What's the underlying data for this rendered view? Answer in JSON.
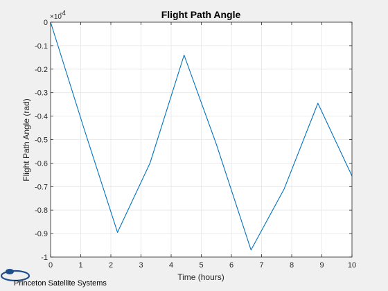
{
  "chart_data": {
    "type": "line",
    "title": "Flight Path Angle",
    "xlabel": "Time (hours)",
    "ylabel": "Flight Path Angle (rad)",
    "y_exponent_base": "×10",
    "y_exponent_power": "-4",
    "xlim": [
      0,
      10
    ],
    "ylim": [
      -1,
      0
    ],
    "xticks": [
      0,
      1,
      2,
      3,
      4,
      5,
      6,
      7,
      8,
      9,
      10
    ],
    "xtick_labels": [
      "0",
      "1",
      "2",
      "3",
      "4",
      "5",
      "6",
      "7",
      "8",
      "9",
      "10"
    ],
    "yticks": [
      0,
      -0.1,
      -0.2,
      -0.3,
      -0.4,
      -0.5,
      -0.6,
      -0.7,
      -0.8,
      -0.9,
      -1
    ],
    "ytick_labels": [
      "0",
      "-0.1",
      "-0.2",
      "-0.3",
      "-0.4",
      "-0.5",
      "-0.6",
      "-0.7",
      "-0.8",
      "-0.9",
      "-1"
    ],
    "grid": true,
    "series": [
      {
        "color": "#0072bd",
        "x": [
          0,
          1.1,
          2.22,
          3.3,
          4.43,
          5.5,
          6.65,
          7.75,
          8.87,
          10
        ],
        "y": [
          0,
          -0.45,
          -0.895,
          -0.6,
          -0.14,
          -0.52,
          -0.97,
          -0.71,
          -0.345,
          -0.655
        ]
      }
    ]
  },
  "branding": {
    "text": "Princeton Satellite Systems",
    "logo_color": "#1f4e8c"
  },
  "colors": {
    "background": "#f0f0f0",
    "axes_background": "#ffffff",
    "grid": "#e6e6e6",
    "axis": "#262626"
  }
}
